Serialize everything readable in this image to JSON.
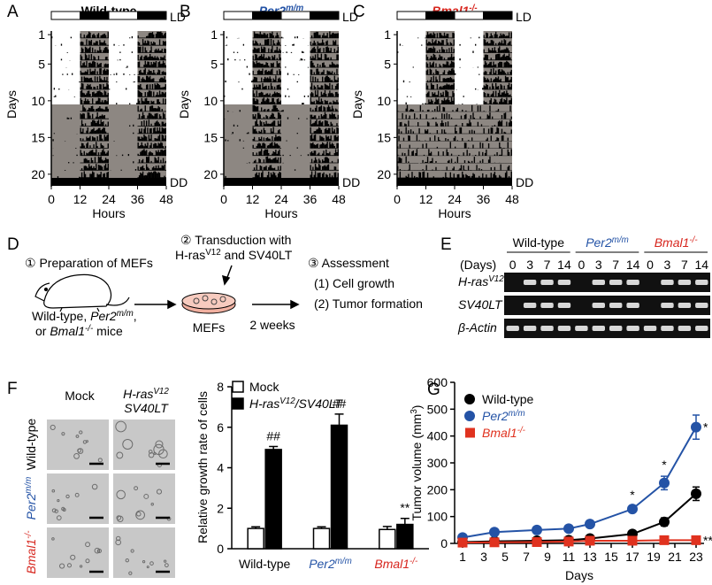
{
  "actograms": {
    "panels": [
      {
        "letter": "A",
        "title": [
          {
            "text": "Wild-type"
          }
        ]
      },
      {
        "letter": "B",
        "title": [
          {
            "text": "Per2",
            "italic": true,
            "color": "#2453a6"
          },
          {
            "text": "m/m",
            "sup": true,
            "italic": true,
            "color": "#2453a6"
          }
        ]
      },
      {
        "letter": "C",
        "title": [
          {
            "text": "Bmal1",
            "italic": true,
            "color": "#d7261e"
          },
          {
            "text": "-/-",
            "sup": true,
            "italic": true,
            "color": "#d7261e"
          }
        ]
      }
    ],
    "ld_label": "LD",
    "dd_label": "DD",
    "y_label": "Days",
    "x_label": "Hours",
    "yticks": [
      1,
      5,
      10,
      15,
      20
    ],
    "ylim": [
      1,
      20
    ],
    "xticks": [
      0,
      12,
      24,
      36,
      48
    ],
    "xlim": [
      0,
      48
    ],
    "plot_color": "#8d8782"
  },
  "scheme": {
    "letter": "D",
    "step1": "① Preparation of MEFs",
    "genotypes_line1": [
      {
        "text": "Wild-type, "
      },
      {
        "text": "Per2",
        "italic": true
      },
      {
        "text": "m/m",
        "sup": true,
        "italic": true
      },
      {
        "text": ","
      }
    ],
    "genotypes_line2": [
      {
        "text": "or "
      },
      {
        "text": "Bmal1",
        "italic": true
      },
      {
        "text": "-/-",
        "sup": true,
        "italic": true
      },
      {
        "text": " mice"
      }
    ],
    "step2_line1": "② Transduction with",
    "step2_line2": [
      {
        "text": "H-ras"
      },
      {
        "text": "V12",
        "sup": true
      },
      {
        "text": " and SV40LT"
      }
    ],
    "dish_label": "MEFs",
    "duration": "2 weeks",
    "step3": "③ Assessment",
    "outcomes": [
      "(1) Cell growth",
      "(2) Tumor formation"
    ]
  },
  "gel": {
    "letter": "E",
    "groups": [
      [
        {
          "text": "Wild-type"
        }
      ],
      [
        {
          "text": "Per2",
          "italic": true,
          "color": "#2453a6"
        },
        {
          "text": "m/m",
          "sup": true,
          "italic": true,
          "color": "#2453a6"
        }
      ],
      [
        {
          "text": "Bmal1",
          "italic": true,
          "color": "#d7261e"
        },
        {
          "text": "-/-",
          "sup": true,
          "italic": true,
          "color": "#d7261e"
        }
      ]
    ],
    "days_label": "(Days)",
    "lanes": [
      0,
      3,
      7,
      14,
      0,
      3,
      7,
      14,
      0,
      3,
      7,
      14
    ],
    "rows": [
      [
        {
          "text": "H-ras",
          "italic": true
        },
        {
          "text": "V12",
          "sup": true,
          "italic": true
        }
      ],
      [
        {
          "text": "SV40LT",
          "italic": true
        }
      ],
      [
        {
          "text": "β-Actin",
          "italic": true
        }
      ]
    ]
  },
  "images": {
    "letter": "F",
    "mock_header": "Mock",
    "treated_header_line1": [
      {
        "text": "H-ras",
        "italic": true
      },
      {
        "text": "V12",
        "sup": true,
        "italic": true
      }
    ],
    "treated_header_line2": [
      {
        "text": "SV40LT",
        "italic": true
      }
    ],
    "rows": [
      [
        {
          "text": "Wild-type"
        }
      ],
      [
        {
          "text": "Per2",
          "italic": true,
          "color": "#2453a6"
        },
        {
          "text": "m/m",
          "sup": true,
          "italic": true,
          "color": "#2453a6"
        }
      ],
      [
        {
          "text": "Bmal1",
          "italic": true,
          "color": "#d7261e"
        },
        {
          "text": "-/-",
          "sup": true,
          "italic": true,
          "color": "#d7261e"
        }
      ]
    ]
  },
  "chart_data": [
    {
      "type": "bar",
      "ylabel": "Relative growth rate of cells",
      "categories": [
        [
          {
            "text": "Wild-type"
          }
        ],
        [
          {
            "text": "Per2",
            "italic": true,
            "color": "#2453a6"
          },
          {
            "text": "m/m",
            "sup": true,
            "italic": true,
            "color": "#2453a6"
          }
        ],
        [
          {
            "text": "Bmal1",
            "italic": true,
            "color": "#d7261e"
          },
          {
            "text": "-/-",
            "sup": true,
            "italic": true,
            "color": "#d7261e"
          }
        ]
      ],
      "ylim": [
        0,
        8
      ],
      "yticks": [
        0,
        2,
        4,
        6,
        8
      ],
      "series": [
        {
          "name": [
            {
              "text": "Mock"
            }
          ],
          "color": "#ffffff",
          "values": [
            1.0,
            1.0,
            0.95
          ],
          "errors": [
            0.08,
            0.08,
            0.15
          ]
        },
        {
          "name": [
            {
              "text": "H-ras",
              "italic": true
            },
            {
              "text": "V12",
              "sup": true,
              "italic": true
            },
            {
              "text": "/SV40LT",
              "italic": true
            }
          ],
          "color": "#000000",
          "values": [
            4.9,
            6.1,
            1.2
          ],
          "errors": [
            0.15,
            0.55,
            0.3
          ],
          "annotations": [
            "##",
            "##",
            "**"
          ]
        }
      ]
    },
    {
      "type": "line",
      "panel_letter": "G",
      "ylabel": [
        {
          "text": "Tumor volume (mm"
        },
        {
          "text": "3",
          "sup": true
        },
        {
          "text": ")"
        }
      ],
      "xlabel": "Days",
      "x": [
        1,
        4,
        8,
        11,
        13,
        17,
        20,
        23
      ],
      "xlim": [
        0.25,
        23.75
      ],
      "xticks": [
        1,
        3,
        5,
        7,
        9,
        11,
        13,
        15,
        17,
        19,
        21,
        23
      ],
      "ylim": [
        0,
        600
      ],
      "yticks": [
        0,
        100,
        200,
        300,
        400,
        500,
        600
      ],
      "legend": "upper left",
      "series": [
        {
          "name": [
            {
              "text": "Wild-type"
            }
          ],
          "color": "#000000",
          "marker": "circle",
          "values": [
            5,
            8,
            10,
            12,
            18,
            35,
            80,
            185
          ],
          "errors": [
            2,
            2,
            3,
            3,
            5,
            8,
            15,
            25
          ],
          "annotations": [
            null,
            null,
            null,
            null,
            null,
            null,
            null,
            null
          ]
        },
        {
          "name": [
            {
              "text": "Per2",
              "italic": true,
              "color": "#2453a6"
            },
            {
              "text": "m/m",
              "sup": true,
              "italic": true,
              "color": "#2453a6"
            }
          ],
          "color": "#2453a6",
          "marker": "circle",
          "values": [
            22,
            42,
            50,
            55,
            72,
            128,
            225,
            433
          ],
          "errors": [
            3,
            4,
            5,
            5,
            8,
            10,
            25,
            45
          ],
          "annotations": [
            null,
            null,
            null,
            null,
            null,
            "*",
            "*",
            "*"
          ]
        },
        {
          "name": [
            {
              "text": "Bmal1",
              "italic": true,
              "color": "#e0321f"
            },
            {
              "text": "-/-",
              "sup": true,
              "italic": true,
              "color": "#e0321f"
            }
          ],
          "color": "#e0321f",
          "marker": "square",
          "values": [
            3,
            4,
            5,
            7,
            10,
            10,
            12,
            12
          ],
          "errors": [
            1,
            1,
            1,
            1,
            2,
            2,
            2,
            2
          ],
          "annotations": [
            null,
            null,
            null,
            null,
            null,
            null,
            null,
            "**"
          ]
        }
      ]
    }
  ]
}
